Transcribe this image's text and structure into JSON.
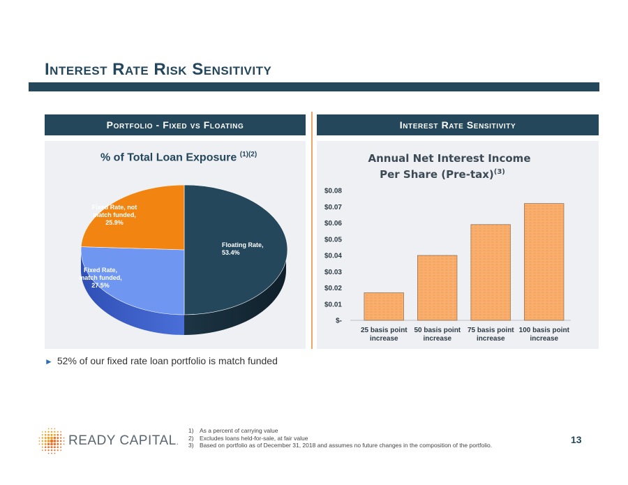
{
  "title": "Interest Rate Risk Sensitivity",
  "left_section": {
    "header": "Portfolio - Fixed vs Floating",
    "chart_title": "% of Total Loan Exposure",
    "chart_title_sup": "(1)(2)"
  },
  "right_section": {
    "header": "Interest Rate Sensitivity",
    "chart_title_line1": "Annual Net Interest Income",
    "chart_title_line2": "Per Share (Pre-tax)",
    "chart_title_sup": "(3)"
  },
  "chart_data": [
    {
      "type": "pie",
      "title": "% of Total Loan Exposure",
      "slices": [
        {
          "label_line1": "Floating Rate,",
          "label_line2": "53.4%",
          "label_line3": "",
          "value": 53.4,
          "color": "#24475c"
        },
        {
          "label_line1": "Fixed Rate,",
          "label_line2": "match funded,",
          "label_line3": "27.5%",
          "value": 27.5,
          "color": "#6f97f2"
        },
        {
          "label_line1": "Fixed Rate, not",
          "label_line2": "match funded,",
          "label_line3": "25.9%",
          "value": 25.9,
          "color": "#f28512"
        }
      ]
    },
    {
      "type": "bar",
      "title": "Annual Net Interest Income Per Share (Pre-tax)(3)",
      "categories": [
        {
          "line1": "25 basis point",
          "line2": "increase"
        },
        {
          "line1": "50 basis point",
          "line2": "increase"
        },
        {
          "line1": "75 basis point",
          "line2": "increase"
        },
        {
          "line1": "100 basis point",
          "line2": "increase"
        }
      ],
      "values": [
        0.017,
        0.04,
        0.059,
        0.072
      ],
      "ylim": [
        0,
        0.08
      ],
      "yticks": [
        "$-",
        "$0.01",
        "$0.02",
        "$0.03",
        "$0.04",
        "$0.05",
        "$0.06",
        "$0.07",
        "$0.08"
      ],
      "bar_color": "#f6a25a"
    }
  ],
  "bullet": "52% of our fixed rate loan portfolio is match funded",
  "logo": {
    "text": "READY CAPITAL",
    "mark": "."
  },
  "footnotes": [
    {
      "num": "1)",
      "text": "As a percent of carrying value"
    },
    {
      "num": "2)",
      "text": "Excludes loans held-for-sale, at fair value"
    },
    {
      "num": "3)",
      "text": "Based on portfolio as of December 31, 2018 and assumes no future changes in the composition of the portfolio."
    }
  ],
  "page_number": "13"
}
